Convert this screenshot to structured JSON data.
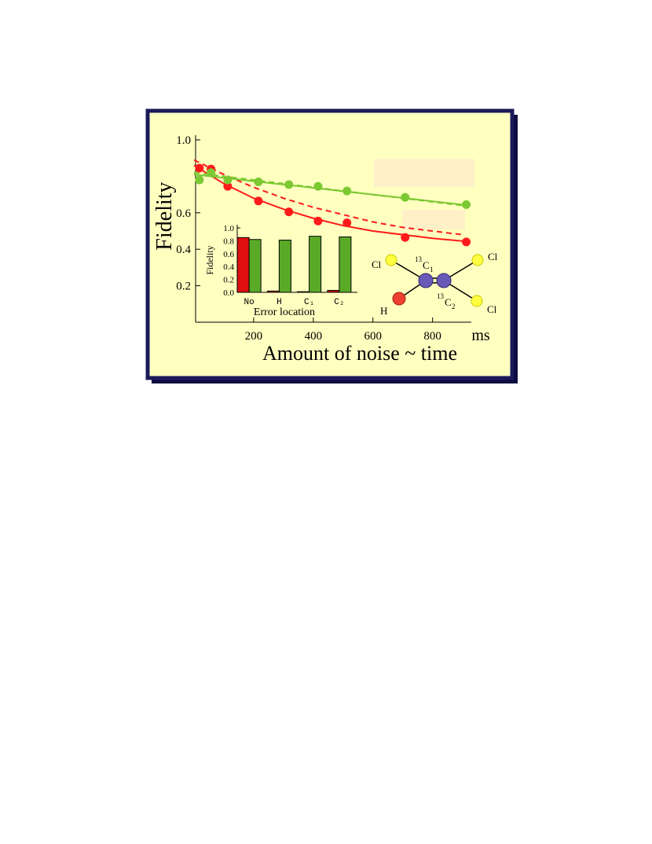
{
  "chart_data": [
    {
      "type": "line",
      "ylabel": "Fidelity",
      "xlabel": "Amount of noise ~ time",
      "x_unit": "ms",
      "xlim": [
        0,
        930
      ],
      "ylim": [
        0,
        1.0
      ],
      "xticks": [
        200,
        400,
        600,
        800
      ],
      "yticks": [
        0.2,
        0.4,
        0.6,
        {
          "value": 1.0,
          "label": "1.0"
        }
      ],
      "series": [
        {
          "style": "markers",
          "color": "#ff1a1a",
          "x": [
            18,
            57,
            113,
            216,
            318,
            416,
            513,
            708,
            913
          ],
          "values": [
            0.845,
            0.84,
            0.745,
            0.665,
            0.605,
            0.555,
            0.545,
            0.465,
            0.44
          ]
        },
        {
          "style": "solid",
          "color": "#ff1a1a",
          "x": [
            0,
            100,
            200,
            300,
            400,
            500,
            600,
            700,
            800,
            900
          ],
          "values": [
            0.86,
            0.76,
            0.68,
            0.62,
            0.57,
            0.53,
            0.5,
            0.48,
            0.46,
            0.445
          ]
        },
        {
          "style": "dashed",
          "color": "#ff1a1a",
          "x": [
            0,
            100,
            200,
            300,
            400,
            500,
            600,
            700,
            800,
            900
          ],
          "values": [
            0.89,
            0.81,
            0.74,
            0.68,
            0.63,
            0.59,
            0.55,
            0.52,
            0.5,
            0.48
          ]
        },
        {
          "style": "markers",
          "color": "#7cc832",
          "x": [
            18,
            57,
            113,
            216,
            318,
            416,
            513,
            708,
            913
          ],
          "values": [
            0.78,
            0.82,
            0.78,
            0.77,
            0.755,
            0.745,
            0.72,
            0.685,
            0.645
          ]
        },
        {
          "style": "solid",
          "color": "#7cc832",
          "x": [
            0,
            100,
            200,
            300,
            400,
            500,
            600,
            700,
            800,
            900
          ],
          "values": [
            0.81,
            0.792,
            0.773,
            0.755,
            0.737,
            0.718,
            0.7,
            0.682,
            0.663,
            0.645
          ]
        },
        {
          "style": "dashed",
          "color": "#7cc832",
          "x": [
            0,
            100,
            200,
            300,
            400,
            500,
            600,
            700,
            800,
            900
          ],
          "values": [
            0.82,
            0.8,
            0.78,
            0.76,
            0.74,
            0.72,
            0.7,
            0.68,
            0.66,
            0.64
          ]
        }
      ],
      "annotations": [
        "Cl",
        "13",
        "C",
        "1",
        "13",
        "C",
        "2",
        "H",
        "Cl",
        "Cl"
      ]
    },
    {
      "type": "bar",
      "ylabel": "Fidelity",
      "xlabel": "Error location",
      "categories": [
        "No",
        "H",
        "C₁",
        "C₂"
      ],
      "ylim": [
        0,
        1.0
      ],
      "yticks": [
        {
          "value": 0.0,
          "label": "0.0"
        },
        0.2,
        0.4,
        0.6,
        0.8,
        {
          "value": 1.0,
          "label": "1.0"
        }
      ],
      "series": [
        {
          "color": "#e01010",
          "values": [
            0.85,
            0.02,
            0.01,
            0.03
          ]
        },
        {
          "color": "#5aaa28",
          "values": [
            0.82,
            0.81,
            0.87,
            0.86
          ]
        }
      ]
    }
  ]
}
